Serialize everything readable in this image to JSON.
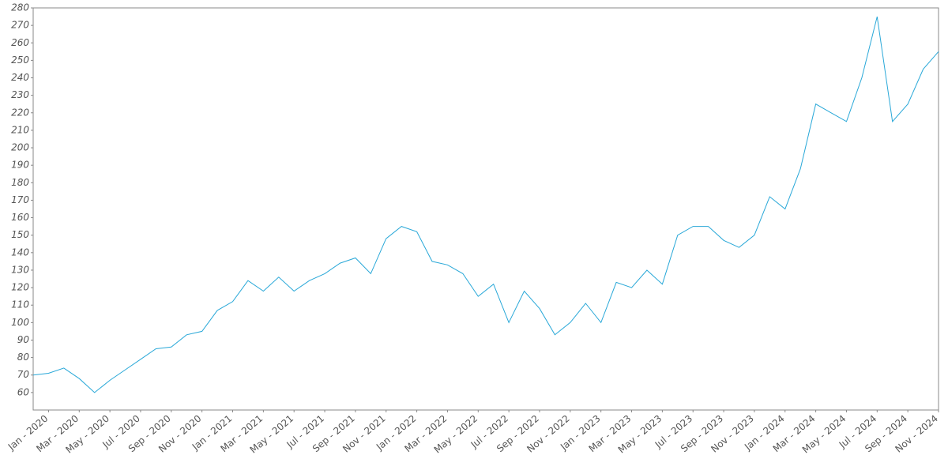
{
  "chart_data": {
    "type": "line",
    "x": [
      "2019-12",
      "2020-01",
      "2020-02",
      "2020-03",
      "2020-04",
      "2020-05",
      "2020-06",
      "2020-07",
      "2020-08",
      "2020-09",
      "2020-10",
      "2020-11",
      "2020-12",
      "2021-01",
      "2021-02",
      "2021-03",
      "2021-04",
      "2021-05",
      "2021-06",
      "2021-07",
      "2021-08",
      "2021-09",
      "2021-10",
      "2021-11",
      "2021-12",
      "2022-01",
      "2022-02",
      "2022-03",
      "2022-04",
      "2022-05",
      "2022-06",
      "2022-07",
      "2022-08",
      "2022-09",
      "2022-10",
      "2022-11",
      "2022-12",
      "2023-01",
      "2023-02",
      "2023-03",
      "2023-04",
      "2023-05",
      "2023-06",
      "2023-07",
      "2023-08",
      "2023-09",
      "2023-10",
      "2023-11",
      "2023-12",
      "2024-01",
      "2024-02",
      "2024-03",
      "2024-04",
      "2024-05",
      "2024-06",
      "2024-07",
      "2024-08",
      "2024-09",
      "2024-10",
      "2024-11"
    ],
    "series": [
      {
        "color": "#29a8d8",
        "values": [
          70,
          71,
          74,
          68,
          60,
          67,
          73,
          79,
          85,
          86,
          93,
          95,
          107,
          112,
          124,
          118,
          126,
          118,
          124,
          128,
          134,
          137,
          128,
          148,
          155,
          152,
          135,
          133,
          128,
          115,
          122,
          100,
          118,
          108,
          93,
          100,
          111,
          100,
          123,
          120,
          130,
          122,
          150,
          155,
          155,
          147,
          143,
          150,
          172,
          165,
          188,
          225,
          220,
          215,
          240,
          275,
          215,
          225,
          245,
          255
        ]
      }
    ],
    "xlim": [
      "2019-12",
      "2024-11"
    ],
    "xticks": [
      {
        "value": "2020-01",
        "label": "Jan - 2020"
      },
      {
        "value": "2020-03",
        "label": "Mar - 2020"
      },
      {
        "value": "2020-05",
        "label": "May - 2020"
      },
      {
        "value": "2020-07",
        "label": "Jul - 2020"
      },
      {
        "value": "2020-09",
        "label": "Sep - 2020"
      },
      {
        "value": "2020-11",
        "label": "Nov - 2020"
      },
      {
        "value": "2021-01",
        "label": "Jan - 2021"
      },
      {
        "value": "2021-03",
        "label": "Mar - 2021"
      },
      {
        "value": "2021-05",
        "label": "May - 2021"
      },
      {
        "value": "2021-07",
        "label": "Jul - 2021"
      },
      {
        "value": "2021-09",
        "label": "Sep - 2021"
      },
      {
        "value": "2021-11",
        "label": "Nov - 2021"
      },
      {
        "value": "2022-01",
        "label": "Jan - 2022"
      },
      {
        "value": "2022-03",
        "label": "Mar - 2022"
      },
      {
        "value": "2022-05",
        "label": "May - 2022"
      },
      {
        "value": "2022-07",
        "label": "Jul - 2022"
      },
      {
        "value": "2022-09",
        "label": "Sep - 2022"
      },
      {
        "value": "2022-11",
        "label": "Nov - 2022"
      },
      {
        "value": "2023-01",
        "label": "Jan - 2023"
      },
      {
        "value": "2023-03",
        "label": "Mar - 2023"
      },
      {
        "value": "2023-05",
        "label": "May - 2023"
      },
      {
        "value": "2023-07",
        "label": "Jul - 2023"
      },
      {
        "value": "2023-09",
        "label": "Sep - 2023"
      },
      {
        "value": "2023-11",
        "label": "Nov - 2023"
      },
      {
        "value": "2024-01",
        "label": "Jan - 2024"
      },
      {
        "value": "2024-03",
        "label": "Mar - 2024"
      },
      {
        "value": "2024-05",
        "label": "May - 2024"
      },
      {
        "value": "2024-07",
        "label": "Jul - 2024"
      },
      {
        "value": "2024-09",
        "label": "Sep - 2024"
      },
      {
        "value": "2024-11",
        "label": "Nov - 2024"
      }
    ],
    "ylim": [
      50,
      280
    ],
    "yticks": [
      60,
      70,
      80,
      90,
      100,
      110,
      120,
      130,
      140,
      150,
      160,
      170,
      180,
      190,
      200,
      210,
      220,
      230,
      240,
      250,
      260,
      270,
      280
    ],
    "grid": false
  }
}
